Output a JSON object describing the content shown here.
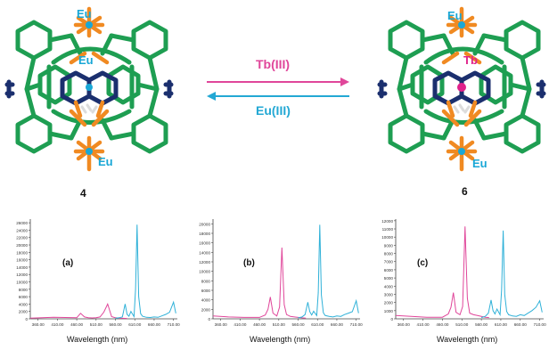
{
  "scheme": {
    "left_compound": "4",
    "right_compound": "6",
    "forward_reagent": "Tb(III)",
    "reverse_reagent": "Eu(III)",
    "metal_eu": "Eu",
    "metal_tb": "Tb",
    "colors": {
      "cage_green": "#1e9e52",
      "ligand_orange": "#f08a22",
      "eu_cyan": "#19a7d6",
      "tb_magenta": "#e0218a",
      "navy": "#1b2f6e",
      "forward_arrow": "#e0469a",
      "reverse_arrow": "#23a8d4"
    }
  },
  "chart_data": [
    {
      "type": "line",
      "panel_label": "(a)",
      "xlabel": "Wavelength (nm)",
      "x_ticks": [
        "360.00",
        "410.00",
        "460.00",
        "510.00",
        "560.00",
        "610.00",
        "660.00",
        "710.00"
      ],
      "y_ticks": [
        "0",
        "2000",
        "4000",
        "6000",
        "8000",
        "10000",
        "12000",
        "14000",
        "16000",
        "18000",
        "20000",
        "22000",
        "24000",
        "26000"
      ],
      "ylim": [
        0,
        27000
      ],
      "xlim": [
        340,
        720
      ],
      "series": [
        {
          "color": "#e0469a",
          "x": [
            340,
            400,
            460,
            470,
            480,
            490,
            500,
            510,
            520,
            530,
            540,
            550,
            560,
            570,
            580,
            590
          ],
          "y": [
            200,
            400,
            300,
            1500,
            500,
            300,
            250,
            300,
            500,
            1800,
            4000,
            600,
            300,
            200,
            150,
            100
          ]
        },
        {
          "color": "#2fb1d8",
          "x": [
            560,
            570,
            578,
            585,
            590,
            595,
            600,
            608,
            612,
            616,
            620,
            625,
            630,
            640,
            650,
            660,
            670,
            680,
            690,
            700,
            710,
            716
          ],
          "y": [
            150,
            300,
            500,
            4000,
            1200,
            700,
            2000,
            600,
            8000,
            25500,
            6000,
            1400,
            700,
            400,
            350,
            500,
            400,
            800,
            1200,
            1800,
            4500,
            1500
          ]
        }
      ]
    },
    {
      "type": "line",
      "panel_label": "(b)",
      "xlabel": "Wavelength (nm)",
      "x_ticks": [
        "360.00",
        "410.00",
        "460.00",
        "510.00",
        "560.00",
        "610.00",
        "660.00",
        "710.00"
      ],
      "y_ticks": [
        "0",
        "2000",
        "4000",
        "6000",
        "8000",
        "10000",
        "12000",
        "14000",
        "16000",
        "18000",
        "20000"
      ],
      "ylim": [
        0,
        21000
      ],
      "xlim": [
        340,
        720
      ],
      "series": [
        {
          "color": "#e0469a",
          "x": [
            340,
            380,
            420,
            460,
            475,
            482,
            488,
            495,
            505,
            512,
            518,
            524,
            530,
            540,
            550,
            560,
            570,
            580
          ],
          "y": [
            600,
            400,
            300,
            300,
            800,
            2000,
            4600,
            1200,
            600,
            2500,
            15000,
            3000,
            900,
            500,
            400,
            300,
            200,
            150
          ]
        },
        {
          "color": "#2fb1d8",
          "x": [
            560,
            570,
            578,
            585,
            590,
            595,
            600,
            608,
            612,
            616,
            620,
            625,
            630,
            640,
            650,
            660,
            670,
            680,
            690,
            700,
            710,
            716
          ],
          "y": [
            200,
            400,
            900,
            3500,
            1500,
            800,
            1600,
            700,
            5500,
            19800,
            5000,
            1300,
            700,
            500,
            400,
            600,
            500,
            900,
            1200,
            1500,
            3800,
            1200
          ]
        }
      ]
    },
    {
      "type": "line",
      "panel_label": "(c)",
      "xlabel": "Wavelength (nm)",
      "x_ticks": [
        "360.00",
        "410.00",
        "460.00",
        "510.00",
        "560.00",
        "610.00",
        "660.00",
        "710.00"
      ],
      "y_ticks": [
        "0",
        "1000",
        "2000",
        "3000",
        "4000",
        "5000",
        "6000",
        "7000",
        "8000",
        "9000",
        "10000",
        "11000",
        "12000"
      ],
      "ylim": [
        0,
        12200
      ],
      "xlim": [
        340,
        720
      ],
      "series": [
        {
          "color": "#e0469a",
          "x": [
            340,
            380,
            420,
            460,
            475,
            482,
            488,
            495,
            505,
            512,
            518,
            524,
            530,
            540,
            550,
            560,
            570,
            580
          ],
          "y": [
            400,
            300,
            200,
            200,
            600,
            1400,
            3200,
            800,
            500,
            1500,
            11300,
            2500,
            700,
            500,
            400,
            300,
            200,
            150
          ]
        },
        {
          "color": "#2fb1d8",
          "x": [
            560,
            570,
            578,
            585,
            590,
            595,
            600,
            608,
            612,
            616,
            620,
            625,
            630,
            640,
            650,
            660,
            670,
            680,
            690,
            700,
            710,
            716
          ],
          "y": [
            150,
            300,
            700,
            2300,
            1000,
            600,
            1200,
            500,
            3500,
            10800,
            3000,
            900,
            500,
            350,
            300,
            500,
            400,
            700,
            1000,
            1400,
            2200,
            800
          ]
        }
      ]
    }
  ]
}
